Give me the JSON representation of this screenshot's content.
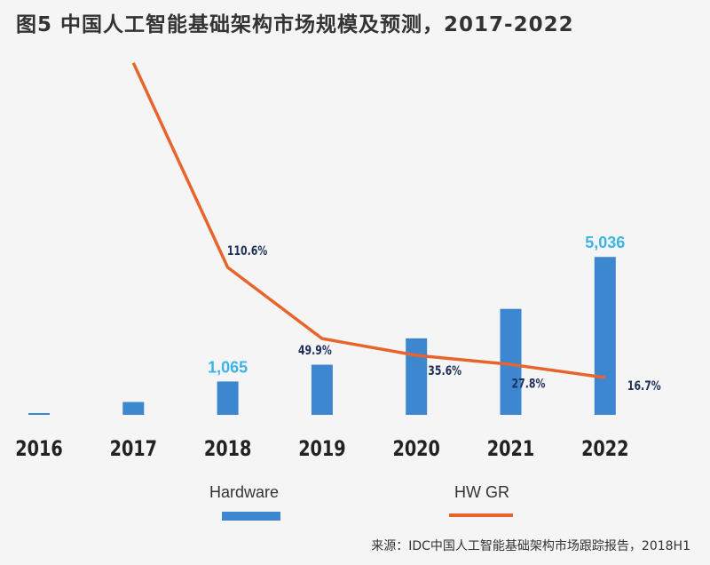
{
  "title": "图5 中国人工智能基础架构市场规模及预测，2017-2022",
  "source": "来源：IDC中国人工智能基础架构市场跟踪报告，2018H1",
  "chart_data": {
    "type": "bar",
    "categories": [
      "2016",
      "2017",
      "2018",
      "2019",
      "2020",
      "2021",
      "2022"
    ],
    "series": [
      {
        "name": "Hardware",
        "type": "bar",
        "color": "#3d87d1",
        "values": [
          50,
          410,
          1065,
          1600,
          2440,
          3380,
          5036
        ],
        "labels": [
          "",
          "",
          "1,065",
          "",
          "",
          "",
          "5,036"
        ]
      },
      {
        "name": "HW GR",
        "type": "line",
        "color": "#e8642c",
        "values": [
          null,
          285,
          110.6,
          49.9,
          35.6,
          27.8,
          16.7
        ],
        "labels": [
          "",
          "",
          "110.6%",
          "49.9%",
          "35.6%",
          "27.8%",
          "16.7%"
        ]
      }
    ],
    "bar_label_color": "#3cb4e5",
    "line_label_color": "#1f2f5a",
    "legend": [
      "Hardware",
      "HW GR"
    ],
    "legend_position": "bottom"
  }
}
